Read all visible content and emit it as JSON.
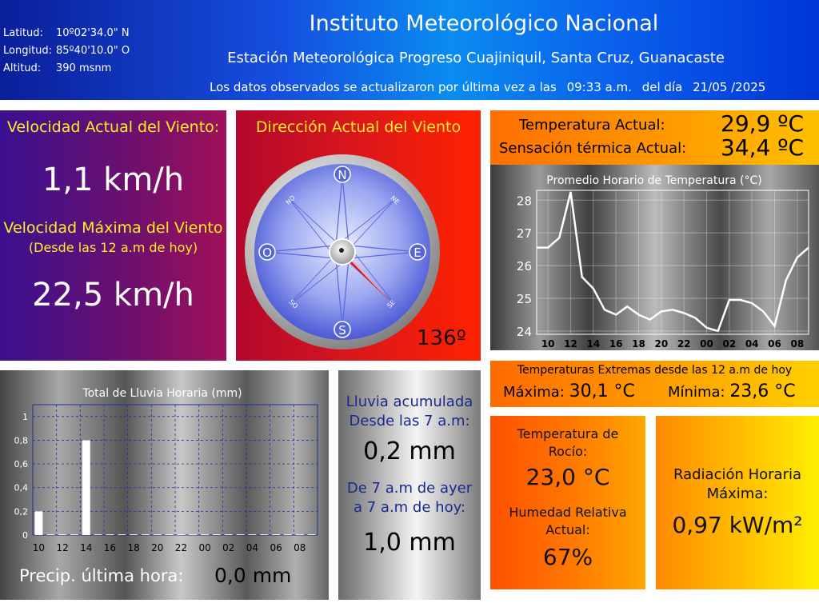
{
  "header": {
    "latitude_label": "Latitud:",
    "latitude_value": "10º02'34.0\" N",
    "longitude_label": "Longitud:",
    "longitude_value": "85º40'10.0\" O",
    "altitude_label": "Altitud:",
    "altitude_value": "390 msnm",
    "title": "Instituto Meteorológico Nacional",
    "station": "Estación Meteorológica Progreso Cuajiniquil, Santa Cruz, Guanacaste",
    "updated_text": "Los datos observados se actualizaron por última vez a las",
    "updated_time": "09:33 a.m.",
    "updated_day_label": "del día",
    "updated_date": "21/05 /2025"
  },
  "wind": {
    "speed_title": "Velocidad Actual del Viento:",
    "speed_value": "1,1 km/h",
    "max_title": "Velocidad Máxima del Viento",
    "max_subtitle": "(Desde las 12 a.m de hoy)",
    "max_value": "22,5 km/h",
    "direction_title": "Dirección Actual del Viento",
    "direction_value": "136º",
    "direction_degrees": 136,
    "compass": {
      "n": "N",
      "s": "S",
      "e": "E",
      "o": "O",
      "ne": "NE",
      "no": "NO",
      "se": "SE",
      "so": "SO"
    }
  },
  "temperature": {
    "current_label": "Temperatura Actual:",
    "current_value": "29,9 ºC",
    "feels_label": "Sensación térmica Actual:",
    "feels_value": "34,4 ºC",
    "extremes_title": "Temperaturas Extremas desde las 12 a.m de hoy",
    "max_label": "Máxima:",
    "max_value": "30,1 °C",
    "min_label": "Mínima:",
    "min_value": "23,6 °C"
  },
  "rain": {
    "accumulated_title": "Lluvia acumulada Desde las 7 a.m:",
    "accumulated_value": "0,2 mm",
    "yesterday_title": "De 7 a.m de ayer a 7 a.m de hoy:",
    "yesterday_value": "1,0 mm",
    "last_hour_label": "Precip. última hora:",
    "last_hour_value": "0,0 mm"
  },
  "dew": {
    "title": "Temperatura de Rocío:",
    "value": "23,0 °C",
    "humidity_title": "Humedad Relativa Actual:",
    "humidity_value": "67%"
  },
  "radiation": {
    "title": "Radiación Horaria Máxima:",
    "value": "0,97 kW/m²"
  },
  "chart_data": [
    {
      "type": "line",
      "title": "Promedio Horario de Temperatura (°C)",
      "xlabel": "",
      "ylabel": "",
      "x_ticks": [
        "10",
        "12",
        "14",
        "16",
        "18",
        "20",
        "22",
        "00",
        "02",
        "04",
        "06",
        "08"
      ],
      "y_ticks": [
        "24",
        "25",
        "26",
        "27",
        "28"
      ],
      "ylim": [
        23.9,
        28.3
      ],
      "grid": true,
      "line_color": "#ffffff",
      "values": [
        26.55,
        26.55,
        26.85,
        28.25,
        25.65,
        25.3,
        24.65,
        24.5,
        24.75,
        24.5,
        24.35,
        24.6,
        24.65,
        24.55,
        24.4,
        24.1,
        24.0,
        24.95,
        24.95,
        24.85,
        24.6,
        24.15,
        25.55,
        26.25,
        26.55
      ]
    },
    {
      "type": "bar",
      "title": "Total de Lluvia Horaria (mm)",
      "xlabel": "",
      "ylabel": "",
      "x_ticks": [
        "10",
        "12",
        "14",
        "16",
        "18",
        "20",
        "22",
        "00",
        "02",
        "04",
        "06",
        "08"
      ],
      "y_ticks": [
        "0",
        "0,2",
        "0,4",
        "0,6",
        "0,8",
        "1"
      ],
      "ylim": [
        0,
        1.1
      ],
      "grid": true,
      "bar_color": "#ffffff",
      "values": [
        0.2,
        0,
        0,
        0,
        0.8,
        0,
        0,
        0,
        0,
        0,
        0,
        0,
        0,
        0,
        0,
        0,
        0,
        0,
        0,
        0,
        0,
        0,
        0,
        0
      ]
    }
  ]
}
